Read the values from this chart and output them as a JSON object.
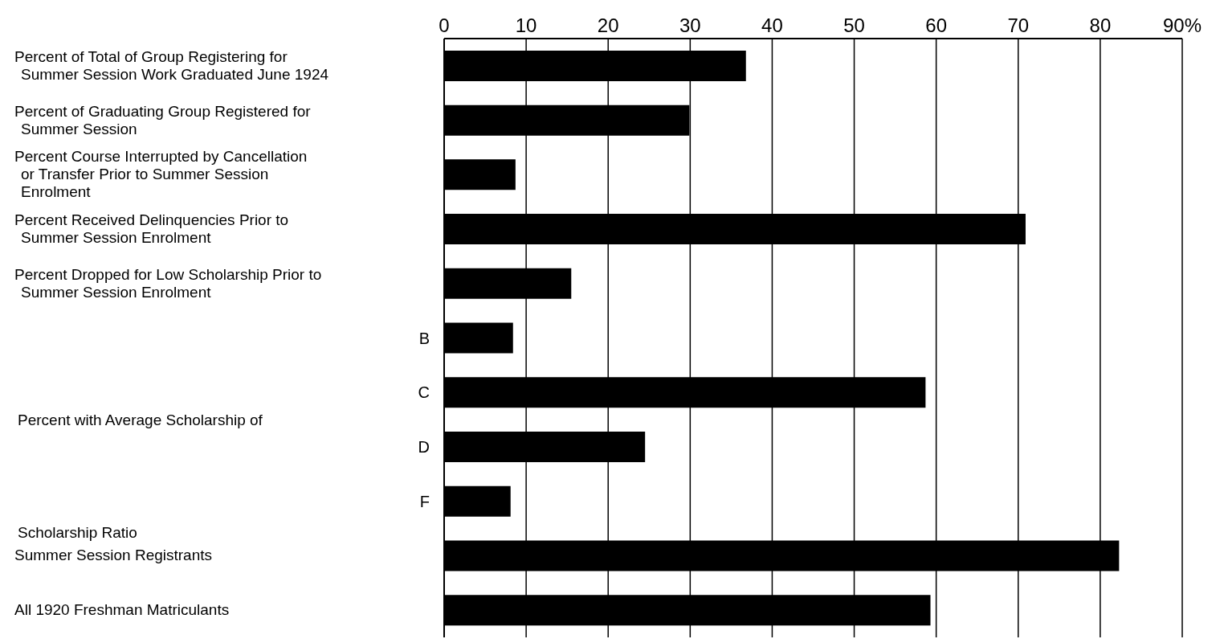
{
  "chart_data": {
    "type": "bar",
    "orientation": "horizontal",
    "categories": [
      "Percent of Total of Group Registering for Summer Session Work Graduated June 1924",
      "Percent of Graduating Group Registered for Summer Session",
      "Percent Course Interrupted by Cancellation or Transfer Prior to Summer Session Enrolment",
      "Percent Received Delinquencies Prior to Summer Session Enrolment",
      "Percent Dropped for Low Scholarship Prior to Summer Session Enrolment",
      "B",
      "C",
      "D",
      "F",
      "Summer Session Registrants",
      "All 1920 Freshman Matriculants"
    ],
    "values": [
      36.8,
      29.9,
      8.7,
      70.9,
      15.5,
      8.4,
      58.7,
      24.5,
      8.1,
      82.3,
      59.3
    ],
    "color": "#000000",
    "xlim": [
      0,
      90
    ],
    "xticks": [
      0,
      10,
      20,
      30,
      40,
      50,
      60,
      70,
      80,
      {
        "value": 90,
        "label": "90%"
      }
    ],
    "grid": "x",
    "annotations": [
      "Percent with Average Scholarship of",
      "Scholarship Ratio"
    ]
  }
}
